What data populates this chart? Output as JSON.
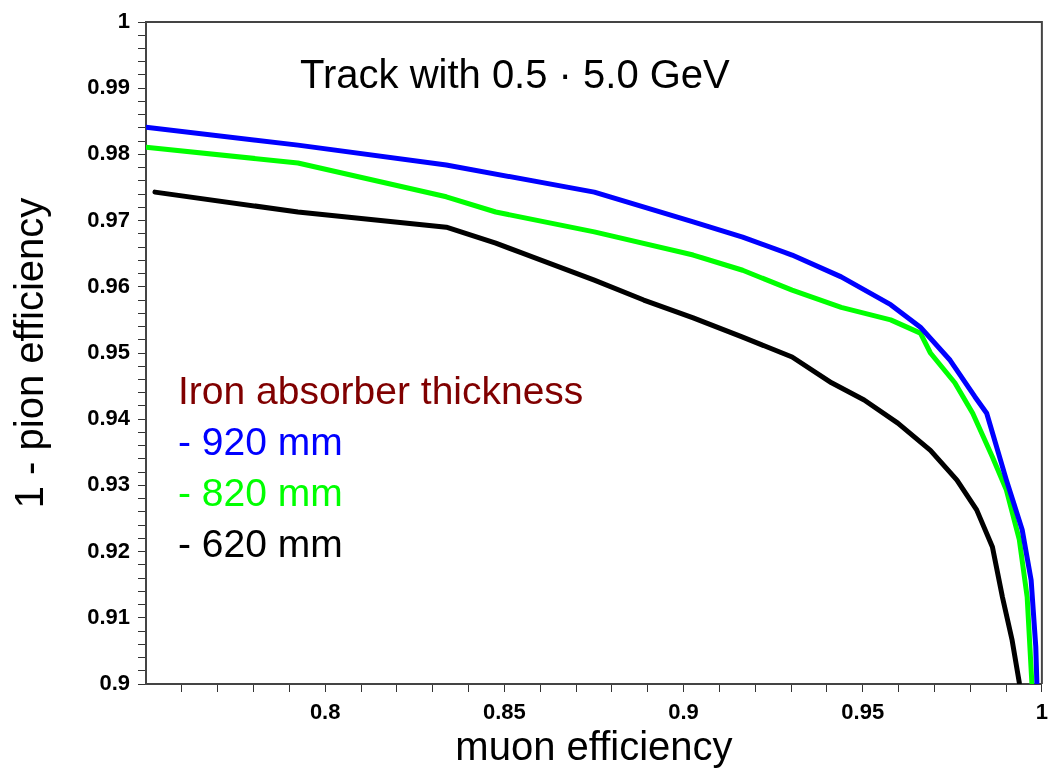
{
  "chart_data": {
    "type": "line",
    "title": "Track with 0.5 · 5.0 GeV",
    "xlabel": "muon efficiency",
    "ylabel": "1 - pion efficiency",
    "legend_title": "Iron absorber thickness",
    "legend": "left",
    "grid": false,
    "marker": "none",
    "line_style": "solid",
    "xlim": [
      0.75,
      1
    ],
    "ylim": [
      0.9,
      1
    ],
    "xticks": [
      {
        "value": 0.76,
        "label": null
      },
      {
        "value": 0.77,
        "label": null
      },
      {
        "value": 0.78,
        "label": null
      },
      {
        "value": 0.79,
        "label": null
      },
      0.8,
      {
        "value": 0.81,
        "label": null
      },
      {
        "value": 0.82,
        "label": null
      },
      {
        "value": 0.83,
        "label": null
      },
      {
        "value": 0.84,
        "label": null
      },
      0.85,
      {
        "value": 0.86,
        "label": null
      },
      {
        "value": 0.87,
        "label": null
      },
      {
        "value": 0.88,
        "label": null
      },
      {
        "value": 0.89,
        "label": null
      },
      0.9,
      {
        "value": 0.91,
        "label": null
      },
      {
        "value": 0.92,
        "label": null
      },
      {
        "value": 0.93,
        "label": null
      },
      {
        "value": 0.94,
        "label": null
      },
      0.95,
      {
        "value": 0.96,
        "label": null
      },
      {
        "value": 0.97,
        "label": null
      },
      {
        "value": 0.98,
        "label": null
      },
      {
        "value": 0.99,
        "label": null
      },
      1
    ],
    "yticks": [
      0.9,
      {
        "value": 0.902,
        "label": null
      },
      {
        "value": 0.904,
        "label": null
      },
      {
        "value": 0.906,
        "label": null
      },
      {
        "value": 0.908,
        "label": null
      },
      0.91,
      {
        "value": 0.912,
        "label": null
      },
      {
        "value": 0.914,
        "label": null
      },
      {
        "value": 0.916,
        "label": null
      },
      {
        "value": 0.918,
        "label": null
      },
      0.92,
      {
        "value": 0.922,
        "label": null
      },
      {
        "value": 0.924,
        "label": null
      },
      {
        "value": 0.926,
        "label": null
      },
      {
        "value": 0.928,
        "label": null
      },
      0.93,
      {
        "value": 0.932,
        "label": null
      },
      {
        "value": 0.934,
        "label": null
      },
      {
        "value": 0.936,
        "label": null
      },
      {
        "value": 0.938,
        "label": null
      },
      0.94,
      {
        "value": 0.942,
        "label": null
      },
      {
        "value": 0.944,
        "label": null
      },
      {
        "value": 0.946,
        "label": null
      },
      {
        "value": 0.948,
        "label": null
      },
      0.95,
      {
        "value": 0.952,
        "label": null
      },
      {
        "value": 0.954,
        "label": null
      },
      {
        "value": 0.956,
        "label": null
      },
      {
        "value": 0.958,
        "label": null
      },
      0.96,
      {
        "value": 0.962,
        "label": null
      },
      {
        "value": 0.964,
        "label": null
      },
      {
        "value": 0.966,
        "label": null
      },
      {
        "value": 0.968,
        "label": null
      },
      0.97,
      {
        "value": 0.972,
        "label": null
      },
      {
        "value": 0.974,
        "label": null
      },
      {
        "value": 0.976,
        "label": null
      },
      {
        "value": 0.978,
        "label": null
      },
      0.98,
      {
        "value": 0.982,
        "label": null
      },
      {
        "value": 0.984,
        "label": null
      },
      {
        "value": 0.986,
        "label": null
      },
      {
        "value": 0.988,
        "label": null
      },
      0.99,
      {
        "value": 0.992,
        "label": null
      },
      {
        "value": 0.994,
        "label": null
      },
      {
        "value": 0.996,
        "label": null
      },
      {
        "value": 0.998,
        "label": null
      },
      1
    ],
    "series": [
      {
        "name": "- 920 mm",
        "color": "#0000ff",
        "x": [
          0.75,
          0.7924,
          0.8338,
          0.8751,
          0.9027,
          0.9165,
          0.9303,
          0.944,
          0.9578,
          0.9661,
          0.9744,
          0.9813,
          0.9846,
          0.9901,
          0.9945,
          0.997,
          0.9983,
          0.9986
        ],
        "values": [
          0.9841,
          0.9814,
          0.9784,
          0.9743,
          0.9698,
          0.9675,
          0.9648,
          0.9615,
          0.9573,
          0.9539,
          0.9489,
          0.9434,
          0.9409,
          0.9308,
          0.9233,
          0.9157,
          0.9056,
          0.9002
        ]
      },
      {
        "name": "- 820 mm",
        "color": "#00ff00",
        "x": [
          0.75,
          0.7924,
          0.8338,
          0.8476,
          0.8751,
          0.9027,
          0.9165,
          0.9303,
          0.944,
          0.9578,
          0.9661,
          0.9689,
          0.9757,
          0.9807,
          0.9862,
          0.9901,
          0.9937,
          0.9959,
          0.9972
        ],
        "values": [
          0.9811,
          0.9787,
          0.9736,
          0.9713,
          0.9683,
          0.9648,
          0.9625,
          0.9595,
          0.9569,
          0.955,
          0.953,
          0.95,
          0.9455,
          0.9409,
          0.9343,
          0.9293,
          0.9218,
          0.9131,
          0.9002
        ]
      },
      {
        "name": "- 620 mm",
        "color": "#000000",
        "x": [
          0.7525,
          0.7924,
          0.8338,
          0.8476,
          0.8751,
          0.8889,
          0.9027,
          0.9165,
          0.9303,
          0.9413,
          0.9504,
          0.9598,
          0.9689,
          0.9763,
          0.9818,
          0.9862,
          0.989,
          0.9917,
          0.9937
        ],
        "values": [
          0.9743,
          0.9713,
          0.969,
          0.9666,
          0.961,
          0.958,
          0.9553,
          0.9524,
          0.9494,
          0.9455,
          0.9429,
          0.9394,
          0.9353,
          0.9308,
          0.9263,
          0.9207,
          0.9131,
          0.9066,
          0.9002
        ]
      }
    ]
  }
}
